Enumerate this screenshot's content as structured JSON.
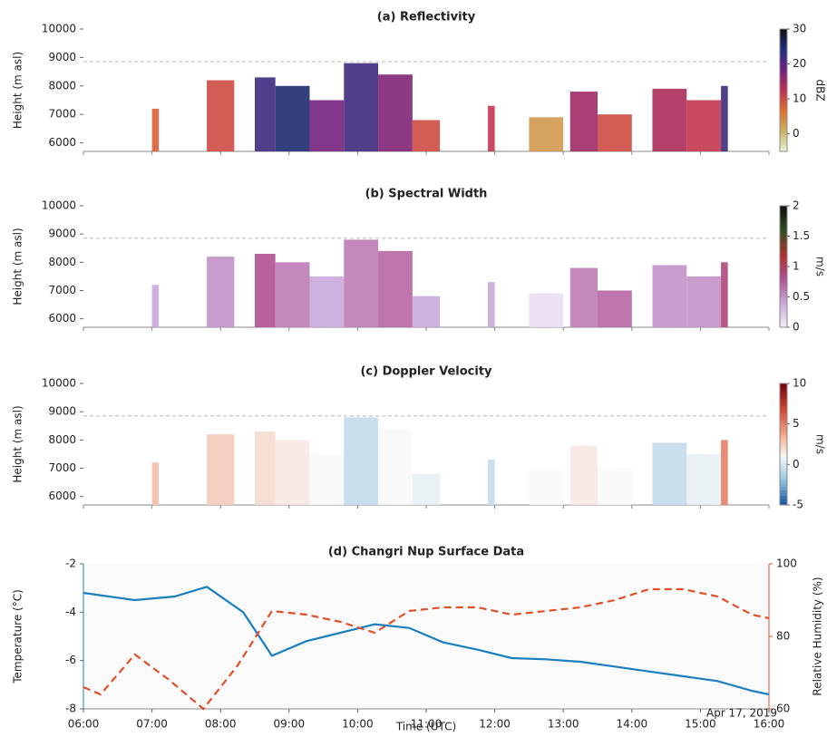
{
  "chart_data": [
    {
      "type": "heatmap",
      "title": "(a) Reflectivity",
      "ylabel": "Height (m asl)",
      "colorbar_label": "dBZ",
      "xlim": [
        6,
        16
      ],
      "ylim": [
        5700,
        10000
      ],
      "yticks": [
        6000,
        7000,
        8000,
        9000,
        10000
      ],
      "reference_line": 8850,
      "clim": [
        -5,
        30
      ],
      "cticks": [
        0,
        10,
        20,
        30
      ],
      "colormap": [
        "#e8f5e0",
        "#c8b060",
        "#e07030",
        "#c03050",
        "#702080",
        "#203080",
        "#101010"
      ],
      "echoes": [
        {
          "x0": 7.0,
          "x1": 7.1,
          "top": 7200,
          "value": 8
        },
        {
          "x0": 7.8,
          "x1": 8.2,
          "top": 8200,
          "value": 10
        },
        {
          "x0": 8.5,
          "x1": 8.8,
          "top": 8300,
          "value": 22
        },
        {
          "x0": 8.8,
          "x1": 9.3,
          "top": 8000,
          "value": 25
        },
        {
          "x0": 9.3,
          "x1": 9.8,
          "top": 7500,
          "value": 18
        },
        {
          "x0": 9.8,
          "x1": 10.3,
          "top": 8800,
          "value": 22
        },
        {
          "x0": 10.3,
          "x1": 10.8,
          "top": 8400,
          "value": 17
        },
        {
          "x0": 10.8,
          "x1": 11.2,
          "top": 6800,
          "value": 10
        },
        {
          "x0": 11.9,
          "x1": 12.0,
          "top": 7300,
          "value": 12
        },
        {
          "x0": 12.5,
          "x1": 13.0,
          "top": 6900,
          "value": 3
        },
        {
          "x0": 13.1,
          "x1": 13.5,
          "top": 7800,
          "value": 15
        },
        {
          "x0": 13.5,
          "x1": 14.0,
          "top": 7000,
          "value": 10
        },
        {
          "x0": 14.3,
          "x1": 14.8,
          "top": 7900,
          "value": 14
        },
        {
          "x0": 14.8,
          "x1": 15.3,
          "top": 7500,
          "value": 12
        },
        {
          "x0": 15.3,
          "x1": 15.4,
          "top": 8000,
          "value": 22
        }
      ]
    },
    {
      "type": "heatmap",
      "title": "(b) Spectral Width",
      "ylabel": "Height (m asl)",
      "colorbar_label": "m/s",
      "xlim": [
        6,
        16
      ],
      "ylim": [
        5700,
        10000
      ],
      "yticks": [
        6000,
        7000,
        8000,
        9000,
        10000
      ],
      "reference_line": 8850,
      "clim": [
        0,
        2
      ],
      "cticks": [
        0,
        0.5,
        1,
        1.5,
        2
      ],
      "colormap": [
        "#f4f0f8",
        "#c8a8dc",
        "#b05090",
        "#b03030",
        "#305020",
        "#101010"
      ],
      "echoes": [
        {
          "x0": 7.0,
          "x1": 7.1,
          "top": 7200,
          "value": 0.4
        },
        {
          "x0": 7.8,
          "x1": 8.2,
          "top": 8200,
          "value": 0.5
        },
        {
          "x0": 8.5,
          "x1": 8.8,
          "top": 8300,
          "value": 0.8
        },
        {
          "x0": 8.8,
          "x1": 9.3,
          "top": 8000,
          "value": 0.6
        },
        {
          "x0": 9.3,
          "x1": 9.8,
          "top": 7500,
          "value": 0.4
        },
        {
          "x0": 9.8,
          "x1": 10.3,
          "top": 8800,
          "value": 0.6
        },
        {
          "x0": 10.3,
          "x1": 10.8,
          "top": 8400,
          "value": 0.7
        },
        {
          "x0": 10.8,
          "x1": 11.2,
          "top": 6800,
          "value": 0.4
        },
        {
          "x0": 11.9,
          "x1": 12.0,
          "top": 7300,
          "value": 0.4
        },
        {
          "x0": 12.5,
          "x1": 13.0,
          "top": 6900,
          "value": 0.1
        },
        {
          "x0": 13.1,
          "x1": 13.5,
          "top": 7800,
          "value": 0.6
        },
        {
          "x0": 13.5,
          "x1": 14.0,
          "top": 7000,
          "value": 0.7
        },
        {
          "x0": 14.3,
          "x1": 14.8,
          "top": 7900,
          "value": 0.5
        },
        {
          "x0": 14.8,
          "x1": 15.3,
          "top": 7500,
          "value": 0.5
        },
        {
          "x0": 15.3,
          "x1": 15.4,
          "top": 8000,
          "value": 0.9
        }
      ]
    },
    {
      "type": "heatmap",
      "title": "(c) Doppler Velocity",
      "ylabel": "Height (m asl)",
      "colorbar_label": "m/s",
      "xlim": [
        6,
        16
      ],
      "ylim": [
        5700,
        10000
      ],
      "yticks": [
        6000,
        7000,
        8000,
        9000,
        10000
      ],
      "reference_line": 8850,
      "clim": [
        -5,
        10
      ],
      "cticks": [
        -5,
        0,
        5,
        10
      ],
      "colormap": [
        "#1050a0",
        "#8fc0e0",
        "#f8f8f8",
        "#f0a080",
        "#d04030",
        "#700010"
      ],
      "echoes": [
        {
          "x0": 7.0,
          "x1": 7.1,
          "top": 7200,
          "value": 3
        },
        {
          "x0": 7.8,
          "x1": 8.2,
          "top": 8200,
          "value": 2.5
        },
        {
          "x0": 8.5,
          "x1": 8.8,
          "top": 8300,
          "value": 2
        },
        {
          "x0": 8.8,
          "x1": 9.3,
          "top": 8000,
          "value": 1.5
        },
        {
          "x0": 9.3,
          "x1": 9.8,
          "top": 7500,
          "value": 1
        },
        {
          "x0": 9.8,
          "x1": 10.3,
          "top": 8800,
          "value": -0.5
        },
        {
          "x0": 10.3,
          "x1": 10.8,
          "top": 8400,
          "value": 1
        },
        {
          "x0": 10.8,
          "x1": 11.2,
          "top": 6800,
          "value": 0.5
        },
        {
          "x0": 11.9,
          "x1": 12.0,
          "top": 7300,
          "value": -0.5
        },
        {
          "x0": 12.5,
          "x1": 13.0,
          "top": 6900,
          "value": 1
        },
        {
          "x0": 13.1,
          "x1": 13.5,
          "top": 7800,
          "value": 1.5
        },
        {
          "x0": 13.5,
          "x1": 14.0,
          "top": 7000,
          "value": 1
        },
        {
          "x0": 14.3,
          "x1": 14.8,
          "top": 7900,
          "value": -0.5
        },
        {
          "x0": 14.8,
          "x1": 15.3,
          "top": 7500,
          "value": 0.5
        },
        {
          "x0": 15.3,
          "x1": 15.4,
          "top": 8000,
          "value": 5
        }
      ]
    },
    {
      "type": "line",
      "title": "(d) Changri Nup Surface Data",
      "ylabel": "Temperature (°C)",
      "y2label": "Relative Humidity (%)",
      "xlabel": "Time (UTC)",
      "annotation": "Apr 17, 2019",
      "xlim": [
        6,
        16
      ],
      "xticks": [
        {
          "value": 6,
          "label": "06:00"
        },
        {
          "value": 7,
          "label": "07:00"
        },
        {
          "value": 8,
          "label": "08:00"
        },
        {
          "value": 9,
          "label": "09:00"
        },
        {
          "value": 10,
          "label": "10:00"
        },
        {
          "value": 11,
          "label": "11:00"
        },
        {
          "value": 12,
          "label": "12:00"
        },
        {
          "value": 13,
          "label": "13:00"
        },
        {
          "value": 14,
          "label": "14:00"
        },
        {
          "value": 15,
          "label": "15:00"
        },
        {
          "value": 16,
          "label": "16:00"
        }
      ],
      "ylim": [
        -8,
        -2
      ],
      "yticks": [
        -8,
        -6,
        -4,
        -2
      ],
      "y2lim": [
        60,
        100
      ],
      "y2ticks": [
        60,
        80,
        100
      ],
      "series": [
        {
          "color": "#1a7fc0",
          "dashed": false,
          "x": [
            6.0,
            6.75,
            7.33,
            7.8,
            8.33,
            8.75,
            9.25,
            9.75,
            10.25,
            10.75,
            11.25,
            11.75,
            12.25,
            12.75,
            13.25,
            13.75,
            14.25,
            14.75,
            15.25,
            15.75,
            16.0
          ],
          "values": [
            -3.2,
            -3.5,
            -3.35,
            -2.95,
            -4.0,
            -5.8,
            -5.2,
            -4.85,
            -4.5,
            -4.65,
            -5.25,
            -5.55,
            -5.9,
            -5.95,
            -6.05,
            -6.25,
            -6.45,
            -6.65,
            -6.85,
            -7.25,
            -7.4
          ]
        },
        {
          "color": "#e0502a",
          "dashed": true,
          "axis": "y2",
          "x": [
            6.0,
            6.25,
            6.75,
            7.25,
            7.75,
            8.25,
            8.75,
            9.25,
            9.75,
            10.25,
            10.75,
            11.25,
            11.75,
            12.25,
            12.75,
            13.25,
            13.75,
            14.25,
            14.75,
            15.25,
            15.75,
            16.0
          ],
          "values": [
            66,
            64,
            75,
            68,
            60,
            72,
            87,
            86,
            84,
            81,
            87,
            88,
            88,
            86,
            87,
            88,
            90,
            93,
            93,
            91,
            86,
            85
          ]
        }
      ]
    }
  ]
}
